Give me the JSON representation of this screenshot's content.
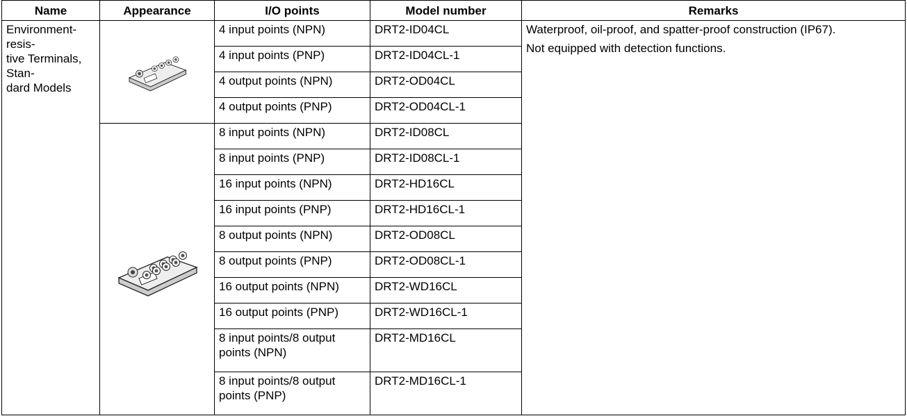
{
  "table": {
    "header": [
      "Name",
      "Appearance",
      "I/O points",
      "Model number",
      "Remarks"
    ],
    "name": [
      "Environment-resis-",
      "tive Terminals, Stan-",
      "dard Models"
    ],
    "remarks": [
      "Waterproof, oil-proof, and spatter-proof construction (IP67).",
      "Not equipped with detection functions."
    ],
    "rows": [
      [
        "4 input points (NPN)",
        "DRT2-ID04CL"
      ],
      [
        "4 input points (PNP)",
        "DRT2-ID04CL-1"
      ],
      [
        "4 output points (NPN)",
        "DRT2-OD04CL"
      ],
      [
        "4 output points (PNP)",
        "DRT2-OD04CL-1"
      ],
      [
        "8 input points (NPN)",
        "DRT2-ID08CL"
      ],
      [
        "8 input points (PNP)",
        "DRT2-ID08CL-1"
      ],
      [
        "16 input points (NPN)",
        "DRT2-HD16CL"
      ],
      [
        "16 input points (PNP)",
        "DRT2-HD16CL-1"
      ],
      [
        "8 output points (NPN)",
        "DRT2-OD08CL"
      ],
      [
        "8 output points (PNP)",
        "DRT2-OD08CL-1"
      ],
      [
        "16 output points (NPN)",
        "DRT2-WD16CL"
      ],
      [
        "16 output points (PNP)",
        "DRT2-WD16CL-1"
      ],
      [
        "8 input points/8 output points (NPN)",
        "DRT2-MD16CL"
      ],
      [
        "8 input points/8 output points (PNP)",
        "DRT2-MD16CL-1"
      ]
    ]
  }
}
